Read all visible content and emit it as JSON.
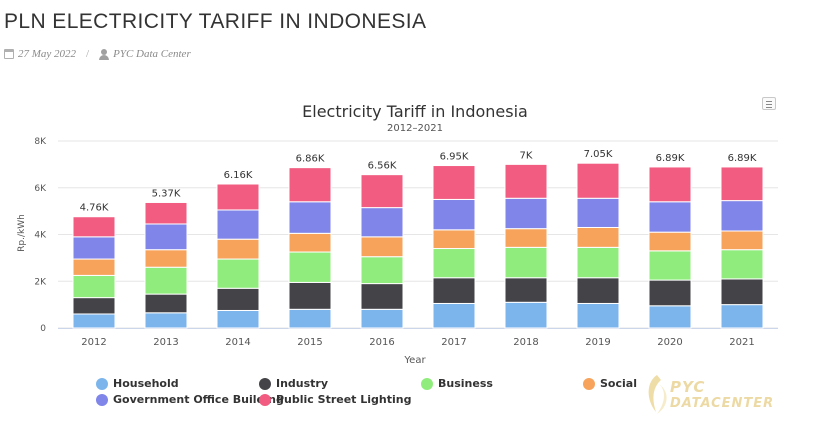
{
  "header": {
    "title": "PLN ELECTRICITY TARIFF IN INDONESIA",
    "date": "27 May 2022",
    "separator": "/",
    "author": "PYC Data Center"
  },
  "logo": {
    "line1": "PYC",
    "line2": "DATACENTER"
  },
  "chart_data": {
    "type": "bar",
    "stacked": true,
    "title": "Electricity Tariff in Indonesia",
    "subtitle": "2012–2021",
    "xlabel": "Year",
    "ylabel": "Rp./kWh",
    "ylim": [
      0,
      8000
    ],
    "yticks": [
      0,
      2000,
      4000,
      6000,
      8000
    ],
    "ytick_labels": [
      "0",
      "2K",
      "4K",
      "6K",
      "8K"
    ],
    "grid": true,
    "legend_position": "bottom",
    "categories": [
      "2012",
      "2013",
      "2014",
      "2015",
      "2016",
      "2017",
      "2018",
      "2019",
      "2020",
      "2021"
    ],
    "totals": [
      4760,
      5370,
      6160,
      6860,
      6560,
      6950,
      7000,
      7050,
      6890,
      6890
    ],
    "total_labels": [
      "4.76K",
      "5.37K",
      "6.16K",
      "6.86K",
      "6.56K",
      "6.95K",
      "7K",
      "7.05K",
      "6.89K",
      "6.89K"
    ],
    "series": [
      {
        "name": "Household",
        "color": "#7cb5ec",
        "values": [
          600,
          650,
          750,
          800,
          800,
          1050,
          1100,
          1050,
          950,
          1000
        ]
      },
      {
        "name": "Industry",
        "color": "#434348",
        "values": [
          700,
          800,
          950,
          1150,
          1100,
          1100,
          1050,
          1100,
          1100,
          1100
        ]
      },
      {
        "name": "Business",
        "color": "#90ed7d",
        "values": [
          950,
          1150,
          1250,
          1300,
          1150,
          1250,
          1300,
          1300,
          1250,
          1250
        ]
      },
      {
        "name": "Social",
        "color": "#f7a35c",
        "values": [
          700,
          750,
          850,
          800,
          850,
          800,
          800,
          850,
          800,
          800
        ]
      },
      {
        "name": "Government Office Building",
        "color": "#8085e9",
        "values": [
          950,
          1100,
          1250,
          1350,
          1250,
          1300,
          1300,
          1250,
          1300,
          1300
        ]
      },
      {
        "name": "Public Street Lighting",
        "color": "#f15c80",
        "values": [
          860,
          920,
          1110,
          1460,
          1410,
          1450,
          1450,
          1500,
          1490,
          1440
        ]
      }
    ]
  }
}
